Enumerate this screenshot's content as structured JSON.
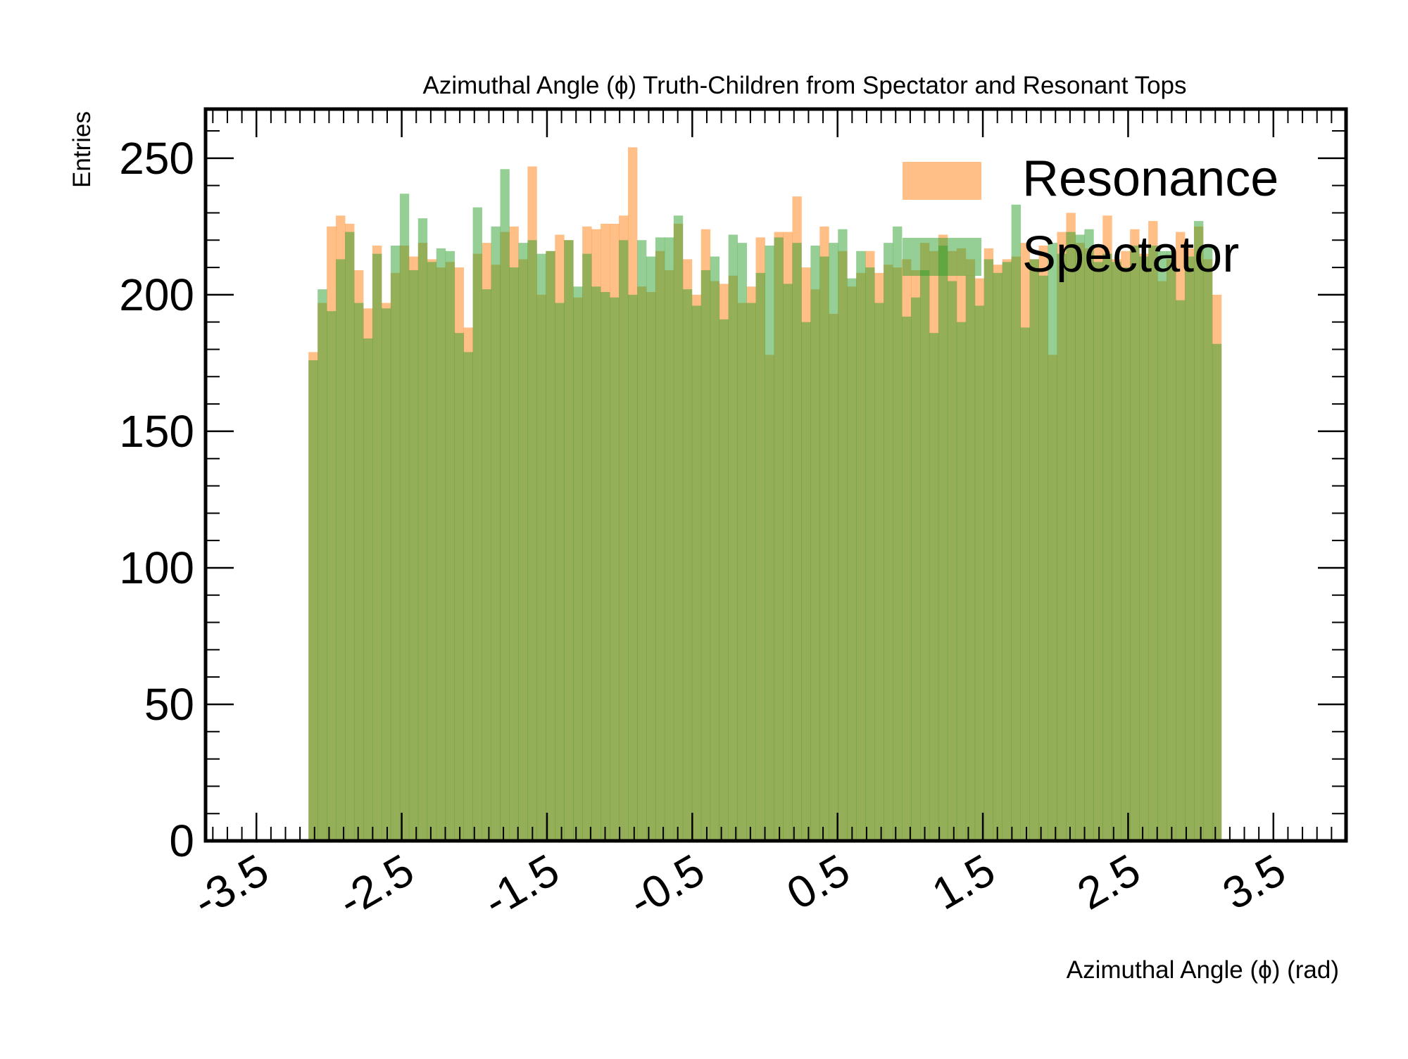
{
  "chart_data": {
    "type": "bar",
    "title": "Azimuthal Angle (ϕ) Truth-Children from Spectator and Resonant Tops",
    "xlabel": "Azimuthal Angle (ϕ) (rad)",
    "ylabel": "Entries",
    "xlim": [
      -3.85,
      4.0
    ],
    "ylim": [
      0,
      268
    ],
    "x_ticks": [
      -3.5,
      -2.5,
      -1.5,
      -0.5,
      0.5,
      1.5,
      2.5,
      3.5
    ],
    "x_tick_labels": [
      "-3.5",
      "-2.5",
      "-1.5",
      "-0.5",
      "0.5",
      "1.5",
      "2.5",
      "3.5"
    ],
    "y_ticks": [
      0,
      50,
      100,
      150,
      200,
      250
    ],
    "y_tick_labels": [
      "0",
      "50",
      "100",
      "150",
      "200",
      "250"
    ],
    "bins": {
      "start": -3.14159,
      "end": 3.14159,
      "count": 100
    },
    "legend_position": "top-right",
    "grid": false,
    "series": [
      {
        "name": "Resonance",
        "color": "#ff7f0e",
        "opacity": 0.5,
        "values": [
          179,
          197,
          225,
          229,
          226,
          209,
          195,
          218,
          197,
          208,
          218,
          214,
          219,
          213,
          210,
          212,
          210,
          188,
          215,
          219,
          211,
          223,
          225,
          213,
          247,
          200,
          216,
          222,
          220,
          199,
          225,
          224,
          226,
          226,
          229,
          254,
          203,
          201,
          216,
          209,
          226,
          213,
          200,
          224,
          205,
          204,
          207,
          197,
          203,
          221,
          178,
          223,
          223,
          236,
          210,
          202,
          225,
          193,
          216,
          203,
          208,
          216,
          208,
          211,
          210,
          213,
          209,
          219,
          216,
          222,
          216,
          217,
          213,
          206,
          217,
          211,
          213,
          214,
          219,
          213,
          218,
          178,
          223,
          230,
          219,
          217,
          218,
          229,
          213,
          216,
          224,
          215,
          227,
          205,
          213,
          223,
          217,
          225,
          213,
          200
        ]
      },
      {
        "name": "Spectator",
        "color": "#2ca02c",
        "opacity": 0.5,
        "values": [
          176,
          202,
          194,
          213,
          223,
          197,
          184,
          215,
          195,
          218,
          237,
          209,
          228,
          212,
          217,
          216,
          186,
          179,
          232,
          202,
          225,
          246,
          210,
          219,
          220,
          215,
          216,
          197,
          220,
          203,
          215,
          203,
          201,
          199,
          220,
          200,
          220,
          214,
          221,
          221,
          229,
          202,
          196,
          209,
          214,
          191,
          222,
          219,
          197,
          208,
          218,
          221,
          204,
          219,
          190,
          218,
          214,
          219,
          224,
          206,
          216,
          210,
          197,
          219,
          225,
          192,
          199,
          209,
          186,
          218,
          205,
          190,
          207,
          196,
          213,
          208,
          212,
          233,
          188,
          213,
          207,
          219,
          215,
          223,
          222,
          224,
          212,
          215,
          212,
          210,
          218,
          214,
          218,
          216,
          216,
          198,
          214,
          227,
          218,
          182
        ]
      }
    ]
  }
}
